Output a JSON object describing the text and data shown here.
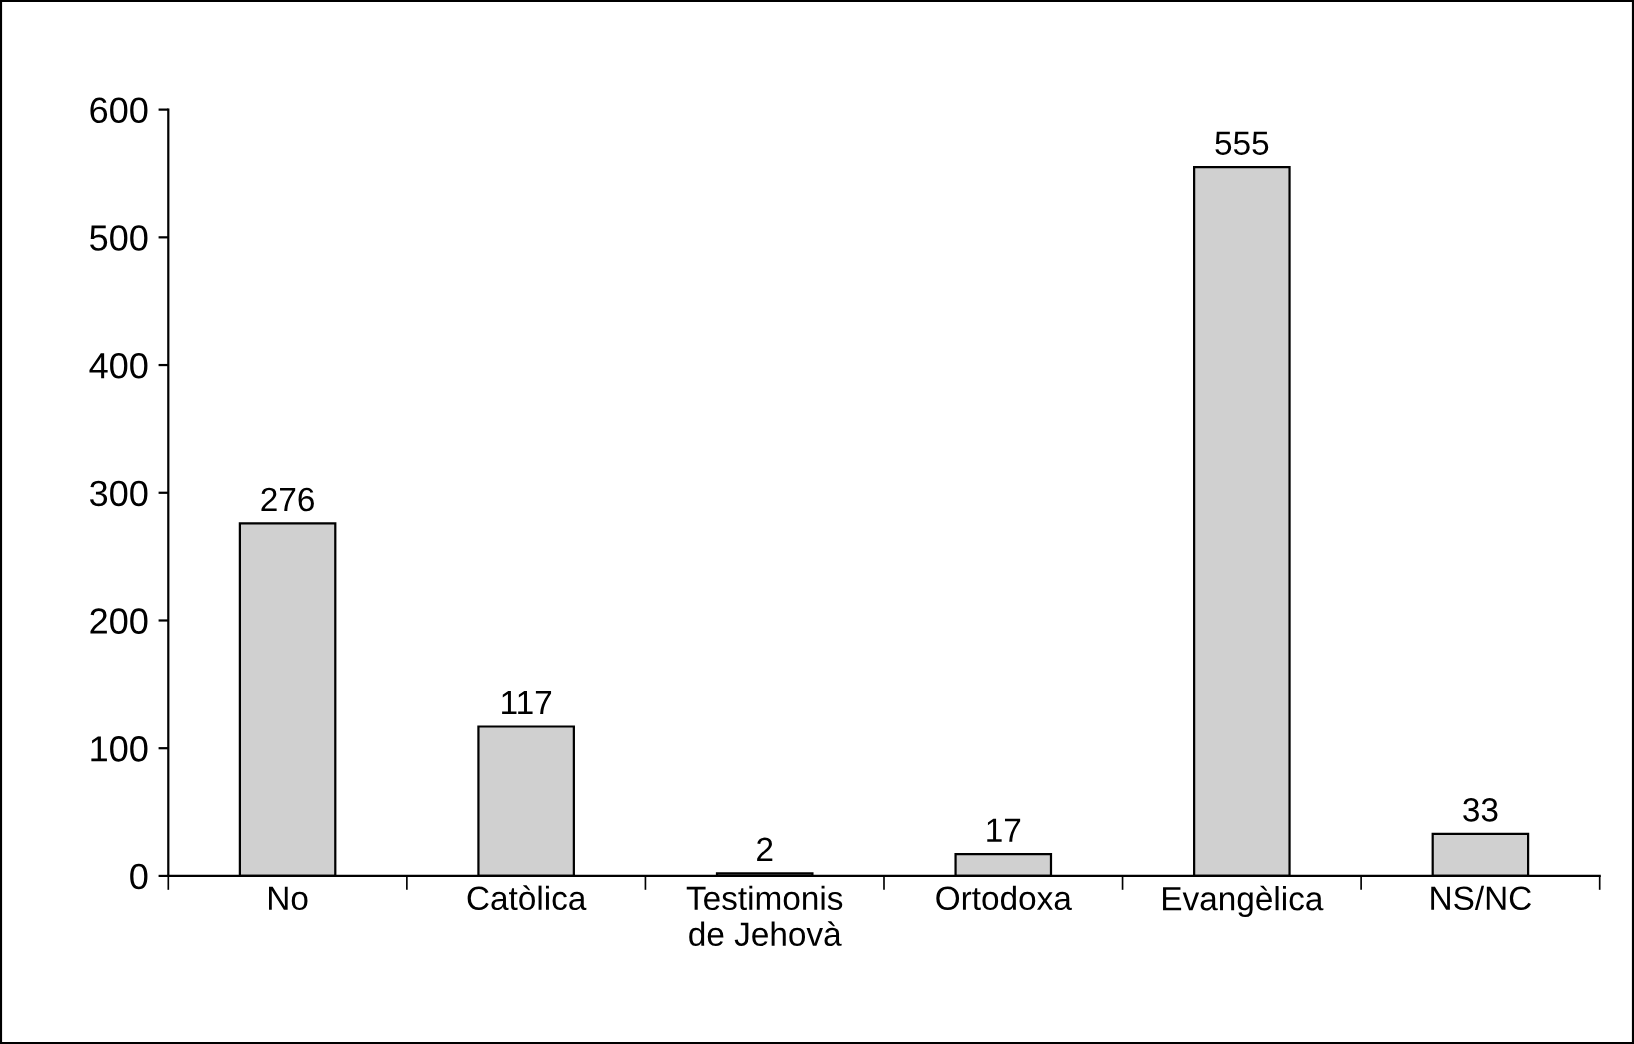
{
  "chart_data": {
    "type": "bar",
    "categories": [
      "No",
      "Catòlica",
      "Testimonis\nde Jehovà",
      "Ortodoxa",
      "Evangèlica",
      "NS/NC"
    ],
    "values": [
      276,
      117,
      2,
      17,
      555,
      33
    ],
    "color": "#d0d0d0",
    "ylim": [
      0,
      600
    ],
    "yticks": [
      0,
      100,
      200,
      300,
      400,
      500,
      600
    ],
    "data_labels": true,
    "grid": false,
    "legend": false
  }
}
